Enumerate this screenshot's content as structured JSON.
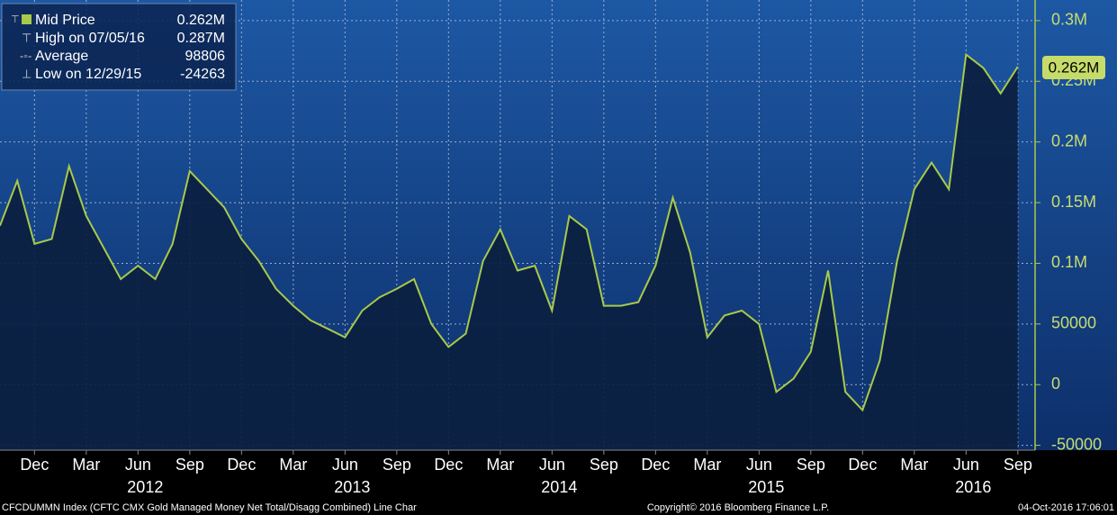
{
  "chart_data": {
    "type": "line",
    "x": [
      "2011-10",
      "2011-11",
      "2011-12",
      "2012-01",
      "2012-02",
      "2012-03",
      "2012-04",
      "2012-05",
      "2012-06",
      "2012-07",
      "2012-08",
      "2012-09",
      "2012-10",
      "2012-11",
      "2012-12",
      "2013-01",
      "2013-02",
      "2013-03",
      "2013-04",
      "2013-05",
      "2013-06",
      "2013-07",
      "2013-08",
      "2013-09",
      "2013-10",
      "2013-11",
      "2013-12",
      "2014-01",
      "2014-02",
      "2014-03",
      "2014-04",
      "2014-05",
      "2014-06",
      "2014-07",
      "2014-08",
      "2014-09",
      "2014-10",
      "2014-11",
      "2014-12",
      "2015-01",
      "2015-02",
      "2015-03",
      "2015-04",
      "2015-05",
      "2015-06",
      "2015-07",
      "2015-08",
      "2015-09",
      "2015-10",
      "2015-11",
      "2015-12",
      "2016-01",
      "2016-02",
      "2016-03",
      "2016-04",
      "2016-05",
      "2016-06",
      "2016-07",
      "2016-08",
      "2016-09"
    ],
    "series": [
      {
        "name": "Mid Price",
        "color": "#a9c94a",
        "values": [
          131000,
          168000,
          116000,
          120000,
          180000,
          139000,
          113000,
          87000,
          98000,
          87000,
          116000,
          176000,
          161000,
          146000,
          120000,
          102000,
          79000,
          65000,
          53000,
          46000,
          39000,
          61000,
          72000,
          79000,
          87000,
          50000,
          31000,
          42000,
          102000,
          128000,
          94000,
          98000,
          61000,
          139000,
          128000,
          65000,
          65000,
          68000,
          98000,
          154000,
          109000,
          39000,
          57000,
          61000,
          50000,
          -6000,
          5000,
          27000,
          94000,
          -6000,
          -21000,
          20000,
          102000,
          161000,
          183000,
          161000,
          272000,
          261000,
          240000,
          262000
        ]
      }
    ],
    "legend": [
      {
        "label": "Mid Price",
        "value": "0.262M"
      },
      {
        "label": "High on 07/05/16",
        "value": "0.287M"
      },
      {
        "label": "Average",
        "value": "98806"
      },
      {
        "label": "Low on 12/29/15",
        "value": "-24263"
      }
    ],
    "last_label": "0.262M",
    "xlim": [
      "2011-10",
      "2016-10"
    ],
    "xticks": [
      {
        "value": "2011-12",
        "label": "Dec"
      },
      {
        "value": "2012-03",
        "label": "Mar"
      },
      {
        "value": "2012-06",
        "label": "Jun"
      },
      {
        "value": "2012-09",
        "label": "Sep"
      },
      {
        "value": "2012-12",
        "label": "Dec"
      },
      {
        "value": "2013-03",
        "label": "Mar"
      },
      {
        "value": "2013-06",
        "label": "Jun"
      },
      {
        "value": "2013-09",
        "label": "Sep"
      },
      {
        "value": "2013-12",
        "label": "Dec"
      },
      {
        "value": "2014-03",
        "label": "Mar"
      },
      {
        "value": "2014-06",
        "label": "Jun"
      },
      {
        "value": "2014-09",
        "label": "Sep"
      },
      {
        "value": "2014-12",
        "label": "Dec"
      },
      {
        "value": "2015-03",
        "label": "Mar"
      },
      {
        "value": "2015-06",
        "label": "Jun"
      },
      {
        "value": "2015-09",
        "label": "Sep"
      },
      {
        "value": "2015-12",
        "label": "Dec"
      },
      {
        "value": "2016-03",
        "label": "Mar"
      },
      {
        "value": "2016-06",
        "label": "Jun"
      },
      {
        "value": "2016-09",
        "label": "Sep"
      }
    ],
    "years": [
      "2012",
      "2013",
      "2014",
      "2015",
      "2016"
    ],
    "ylim": [
      -54000,
      317000
    ],
    "yticks": [
      -50000,
      0,
      50000,
      {
        "value": 100000,
        "label": "0.1M"
      },
      {
        "value": 150000,
        "label": "0.15M"
      },
      {
        "value": 200000,
        "label": "0.2M"
      },
      {
        "value": 250000,
        "label": "0.25M"
      },
      {
        "value": 300000,
        "label": "0.3M"
      }
    ],
    "grid": true,
    "footer_left": "CFCDUMMN Index (CFTC CMX Gold Managed Money Net Total/Disagg Combined) Line Char",
    "footer_center": "Copyright© 2016 Bloomberg Finance L.P.",
    "footer_right": "04-Oct-2016 17:06:01"
  }
}
